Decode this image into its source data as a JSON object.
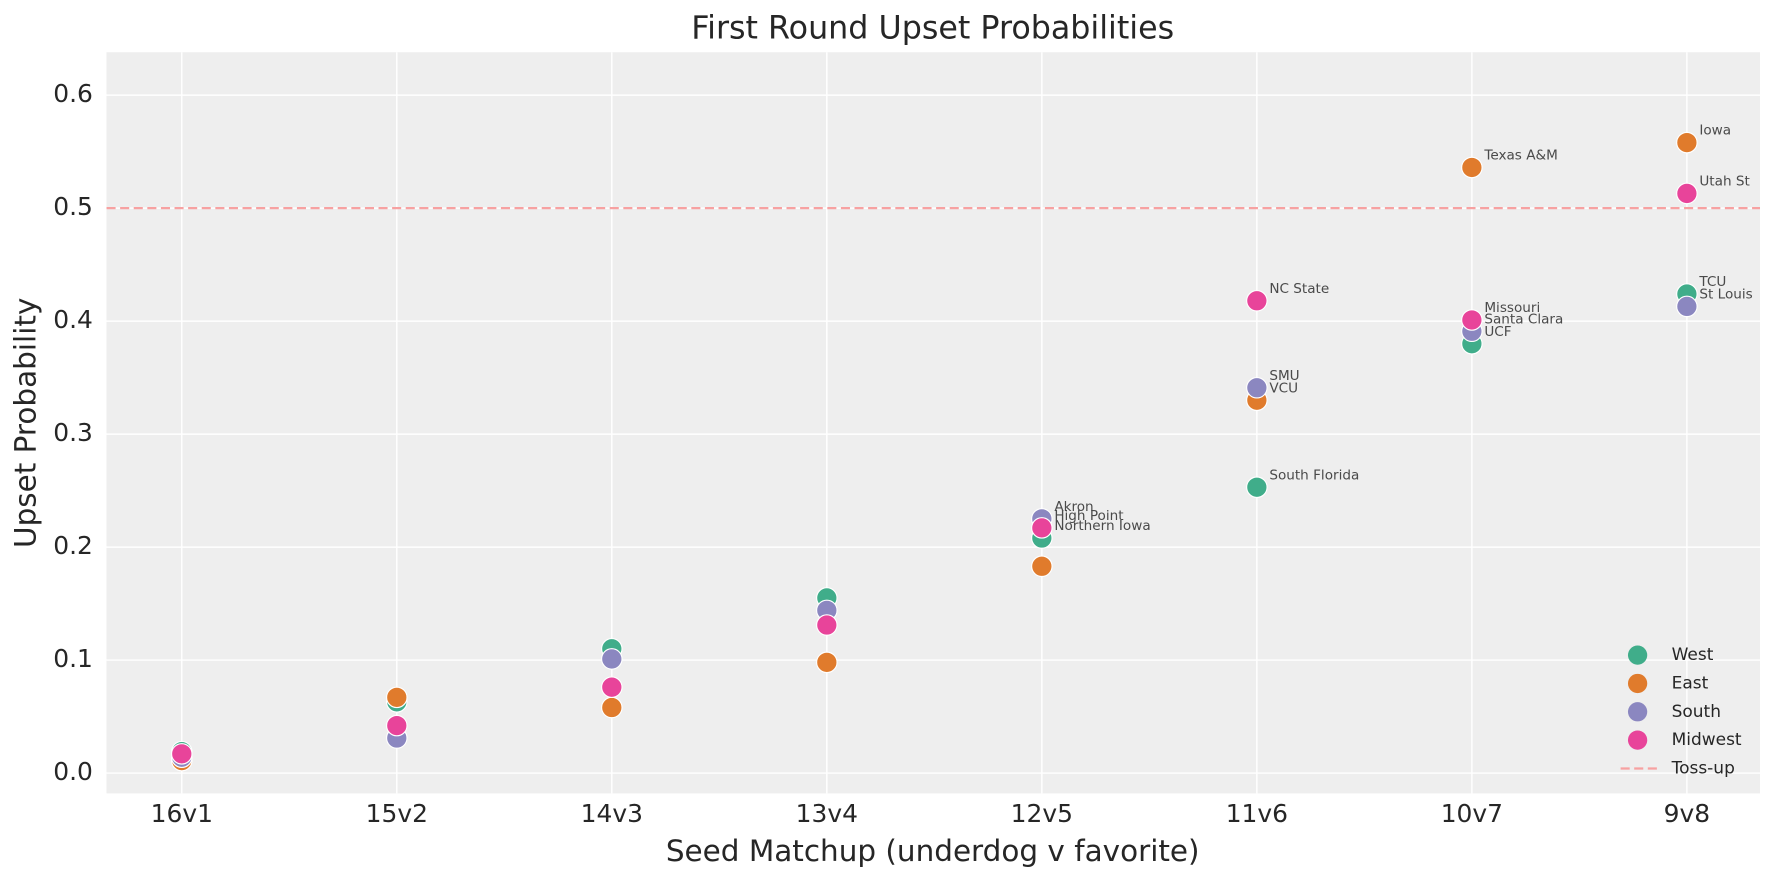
{
  "chart_data": {
    "type": "scatter",
    "title": "First Round Upset Probabilities",
    "x_label": "Seed Matchup (underdog v favorite)",
    "y_label": "Upset Probability",
    "categories": [
      "16v1",
      "15v2",
      "14v3",
      "13v4",
      "12v5",
      "11v6",
      "10v7",
      "9v8"
    ],
    "series": [
      {
        "name": "West",
        "color": "#40ad8a",
        "values": [
          0.019,
          0.063,
          0.11,
          0.155,
          0.208,
          0.253,
          0.38,
          0.424
        ],
        "labels": [
          null,
          null,
          null,
          null,
          "Northern Iowa",
          "South Florida",
          "UCF",
          "TCU"
        ]
      },
      {
        "name": "East",
        "color": "#e07b2c",
        "values": [
          0.011,
          0.067,
          0.058,
          0.098,
          0.183,
          0.33,
          0.536,
          0.558
        ],
        "labels": [
          null,
          null,
          null,
          null,
          null,
          "VCU",
          "Texas A&M",
          "Iowa"
        ]
      },
      {
        "name": "South",
        "color": "#8b87c0",
        "values": [
          0.014,
          0.031,
          0.101,
          0.144,
          0.225,
          0.341,
          0.391,
          0.413
        ],
        "labels": [
          null,
          null,
          null,
          null,
          "Akron",
          "SMU",
          "Santa Clara",
          "St Louis"
        ]
      },
      {
        "name": "Midwest",
        "color": "#e8449a",
        "values": [
          0.017,
          0.042,
          0.076,
          0.131,
          0.217,
          0.418,
          0.401,
          0.513
        ],
        "labels": [
          null,
          null,
          null,
          null,
          "High Point",
          "NC State",
          "Missouri",
          "Utah St"
        ]
      }
    ],
    "reference_line": {
      "name": "Toss-up",
      "value": 0.5,
      "color": "#f7a1a1"
    },
    "ylim": [
      -0.018,
      0.638
    ],
    "yticks": [
      {
        "value": 0,
        "label": "0.0"
      },
      0.1,
      0.2,
      0.3,
      0.4,
      0.5,
      0.6
    ],
    "grid": true,
    "legend": "lower right"
  }
}
